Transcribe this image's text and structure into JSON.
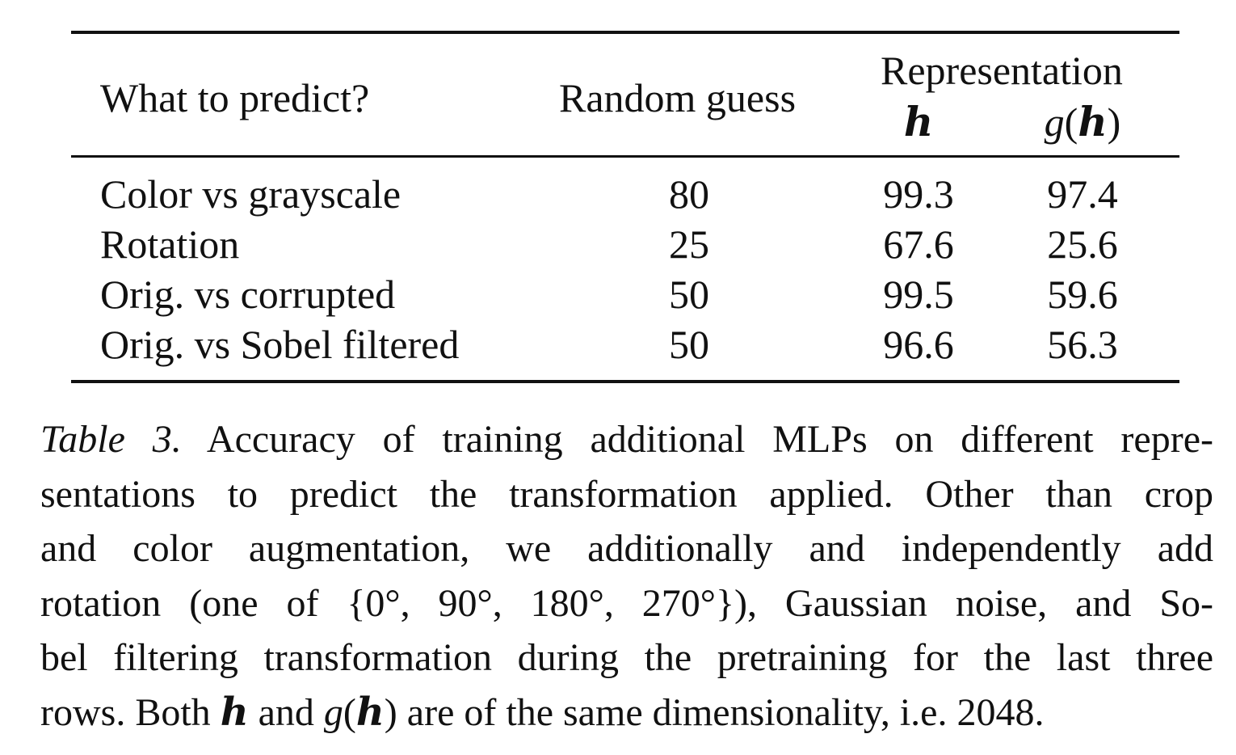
{
  "table": {
    "headers": {
      "what": "What to predict?",
      "random": "Random guess",
      "representation": "Representation",
      "h": "h",
      "g": "g",
      "g_h_inner": "h"
    },
    "rows": [
      {
        "label": "Color vs grayscale",
        "random": "80",
        "h": "99.3",
        "gh": "97.4"
      },
      {
        "label": "Rotation",
        "random": "25",
        "h": "67.6",
        "gh": "25.6"
      },
      {
        "label": "Orig. vs corrupted",
        "random": "50",
        "h": "99.5",
        "gh": "59.6"
      },
      {
        "label": "Orig. vs Sobel filtered",
        "random": "50",
        "h": "96.6",
        "gh": "56.3"
      }
    ]
  },
  "caption": {
    "label": "Table 3.",
    "lines": [
      " Accuracy of training additional MLPs on different repre-",
      "sentations to predict the transformation applied. Other than crop",
      "and color augmentation, we additionally and independently add",
      "rotation (one of {0°, 90°, 180°, 270°}), Gaussian noise, and So-",
      "bel filtering transformation during the pretraining for the last three"
    ],
    "last_line": {
      "pre": "rows. Both ",
      "h": "h",
      "mid": " and ",
      "g": "g",
      "gh_inner": "h",
      "post": " are of the same dimensionality, i.e. 2048."
    }
  }
}
